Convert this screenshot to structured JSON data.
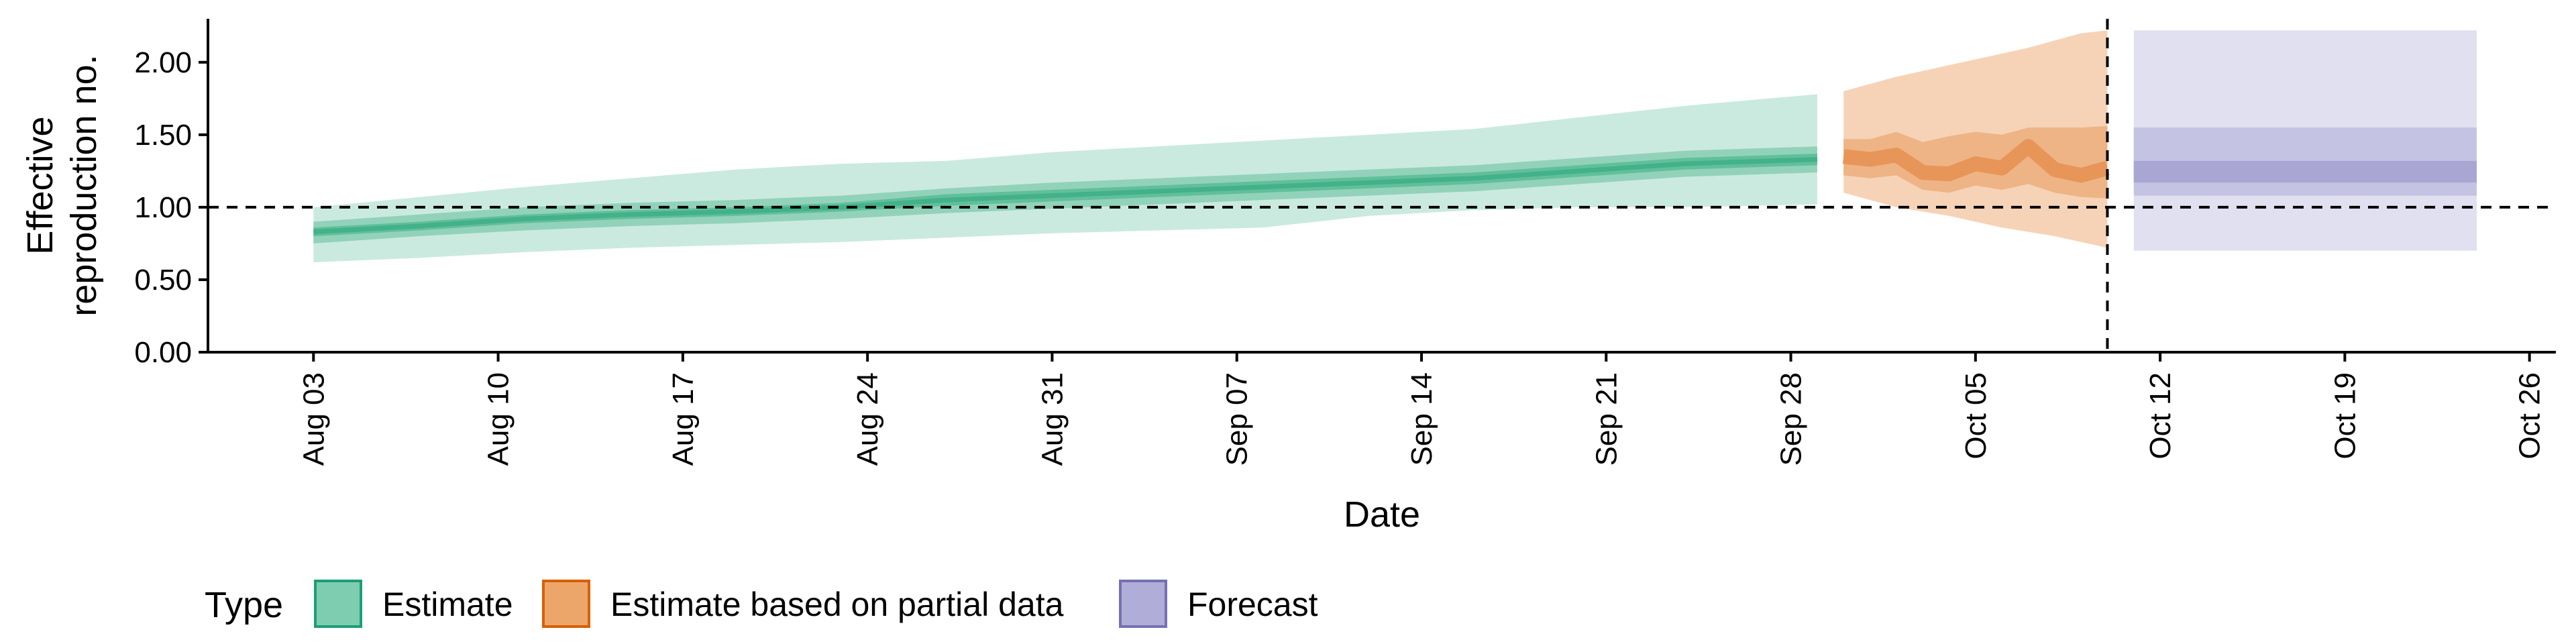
{
  "chart_data": {
    "type": "area",
    "xlabel": "Date",
    "ylabel_lines": [
      "Effective",
      "reproduction no."
    ],
    "ylim": [
      0,
      2.3
    ],
    "yticks": [
      0.0,
      0.5,
      1.0,
      1.5,
      2.0
    ],
    "ytick_labels": [
      "0.00",
      "0.50",
      "1.00",
      "1.50",
      "2.00"
    ],
    "xlim": [
      "2020-07-30",
      "2020-10-27"
    ],
    "xticks": [
      "2020-08-03",
      "2020-08-10",
      "2020-08-17",
      "2020-08-24",
      "2020-08-31",
      "2020-09-07",
      "2020-09-14",
      "2020-09-21",
      "2020-09-28",
      "2020-10-05",
      "2020-10-12",
      "2020-10-19",
      "2020-10-26"
    ],
    "xtick_labels": [
      "Aug 03",
      "Aug 10",
      "Aug 17",
      "Aug 24",
      "Aug 31",
      "Sep 07",
      "Sep 14",
      "Sep 21",
      "Sep 28",
      "Oct 05",
      "Oct 12",
      "Oct 19",
      "Oct 26"
    ],
    "reference_hline": 1.0,
    "reference_vline": "2020-10-10",
    "legend": {
      "title": "Type",
      "position": "bottom",
      "entries": [
        {
          "label": "Estimate",
          "fill": "#7fcdb0",
          "stroke": "#1b9e77"
        },
        {
          "label": "Estimate based on partial data",
          "fill": "#eda66a",
          "stroke": "#d95f02"
        },
        {
          "label": "Forecast",
          "fill": "#b0aed8",
          "stroke": "#7570b3"
        }
      ]
    },
    "series": [
      {
        "name": "Estimate",
        "color": "#1b9e77",
        "x": [
          "2020-08-03",
          "2020-08-07",
          "2020-08-11",
          "2020-08-15",
          "2020-08-19",
          "2020-08-23",
          "2020-08-27",
          "2020-08-31",
          "2020-09-04",
          "2020-09-08",
          "2020-09-12",
          "2020-09-16",
          "2020-09-20",
          "2020-09-24",
          "2020-09-29"
        ],
        "median": [
          0.83,
          0.87,
          0.92,
          0.95,
          0.97,
          1.0,
          1.05,
          1.08,
          1.11,
          1.14,
          1.17,
          1.2,
          1.25,
          1.3,
          1.33
        ],
        "lower_50": [
          0.8,
          0.84,
          0.89,
          0.92,
          0.94,
          0.97,
          1.01,
          1.04,
          1.07,
          1.1,
          1.13,
          1.16,
          1.21,
          1.26,
          1.29
        ],
        "upper_50": [
          0.86,
          0.9,
          0.95,
          0.98,
          1.0,
          1.03,
          1.09,
          1.12,
          1.15,
          1.18,
          1.21,
          1.24,
          1.29,
          1.34,
          1.37
        ],
        "lower_90": [
          0.75,
          0.8,
          0.84,
          0.87,
          0.89,
          0.92,
          0.96,
          0.99,
          1.02,
          1.05,
          1.08,
          1.11,
          1.16,
          1.21,
          1.24
        ],
        "upper_90": [
          0.9,
          0.95,
          1.0,
          1.03,
          1.05,
          1.08,
          1.13,
          1.17,
          1.2,
          1.23,
          1.26,
          1.29,
          1.34,
          1.39,
          1.42
        ],
        "lower": [
          0.62,
          0.65,
          0.69,
          0.72,
          0.74,
          0.76,
          0.79,
          0.82,
          0.84,
          0.86,
          0.94,
          0.98,
          1.0,
          1.0,
          1.02
        ],
        "upper": [
          1.0,
          1.07,
          1.14,
          1.2,
          1.26,
          1.3,
          1.32,
          1.38,
          1.42,
          1.46,
          1.5,
          1.54,
          1.62,
          1.7,
          1.78
        ]
      },
      {
        "name": "Estimate based on partial data",
        "color": "#d95f02",
        "x": [
          "2020-09-30",
          "2020-10-01",
          "2020-10-02",
          "2020-10-03",
          "2020-10-04",
          "2020-10-05",
          "2020-10-06",
          "2020-10-07",
          "2020-10-08",
          "2020-10-09",
          "2020-10-10"
        ],
        "median": [
          1.35,
          1.33,
          1.36,
          1.24,
          1.23,
          1.3,
          1.27,
          1.42,
          1.26,
          1.22,
          1.27
        ],
        "lower_50": [
          1.22,
          1.2,
          1.22,
          1.12,
          1.1,
          1.15,
          1.12,
          1.16,
          1.1,
          1.07,
          1.06
        ],
        "upper_50": [
          1.47,
          1.47,
          1.52,
          1.45,
          1.49,
          1.52,
          1.5,
          1.55,
          1.55,
          1.55,
          1.56
        ],
        "lower_90": [
          1.1,
          1.05,
          1.0,
          0.97,
          0.94,
          0.9,
          0.86,
          0.83,
          0.8,
          0.76,
          0.72
        ],
        "upper_90": [
          1.8,
          1.85,
          1.9,
          1.94,
          1.98,
          2.02,
          2.06,
          2.1,
          2.15,
          2.2,
          2.22
        ]
      },
      {
        "name": "Forecast",
        "color": "#7570b3",
        "x": [
          "2020-10-11",
          "2020-10-24"
        ],
        "median": [
          1.26,
          1.26
        ],
        "lower_50": [
          1.17,
          1.17
        ],
        "upper_50": [
          1.32,
          1.32
        ],
        "lower_75": [
          1.08,
          1.08
        ],
        "upper_75": [
          1.55,
          1.55
        ],
        "lower_90": [
          0.7,
          0.7
        ],
        "upper_90": [
          2.22,
          2.22
        ]
      }
    ]
  }
}
